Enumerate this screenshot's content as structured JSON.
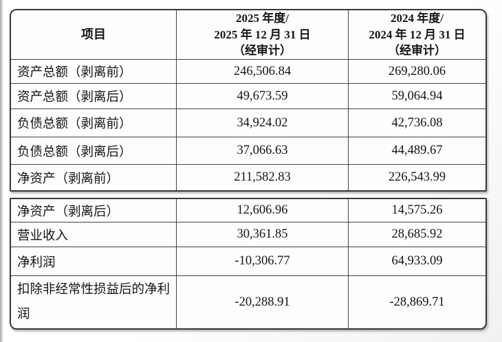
{
  "colors": {
    "border": "#424242",
    "text": "#141414",
    "paper": "#fdfdfd"
  },
  "table": {
    "header": {
      "item": "项目",
      "col_2025": {
        "line1": "2025 年度/",
        "line2": "2025 年 12 月 31 日",
        "line3": "（经审计）"
      },
      "col_2024": {
        "line1": "2024 年度/",
        "line2": "2024 年 12 月 31 日",
        "line3": "（经审计）"
      }
    },
    "rows": [
      {
        "label": "资产总额（剥离前）",
        "y2025": "246,506.84",
        "y2024": "269,280.06"
      },
      {
        "label": "资产总额（剥离后）",
        "y2025": "49,673.59",
        "y2024": "59,064.94"
      },
      {
        "label": "负债总额（剥离前）",
        "y2025": "34,924.02",
        "y2024": "42,736.08"
      },
      {
        "label": "负债总额（剥离后）",
        "y2025": "37,066.63",
        "y2024": "44,489.67"
      },
      {
        "label": "净资产（剥离前）",
        "y2025": "211,582.83",
        "y2024": "226,543.99"
      },
      {
        "label": "净资产（剥离后）",
        "y2025": "12,606.96",
        "y2024": "14,575.26"
      },
      {
        "label": "营业收入",
        "y2025": "30,361.85",
        "y2024": "28,685.92"
      },
      {
        "label": "净利润",
        "y2025": "-10,306.77",
        "y2024": "64,933.09"
      },
      {
        "label": "扣除非经常性损益后的净利润",
        "y2025": "-20,288.91",
        "y2024": "-28,869.71"
      }
    ]
  }
}
